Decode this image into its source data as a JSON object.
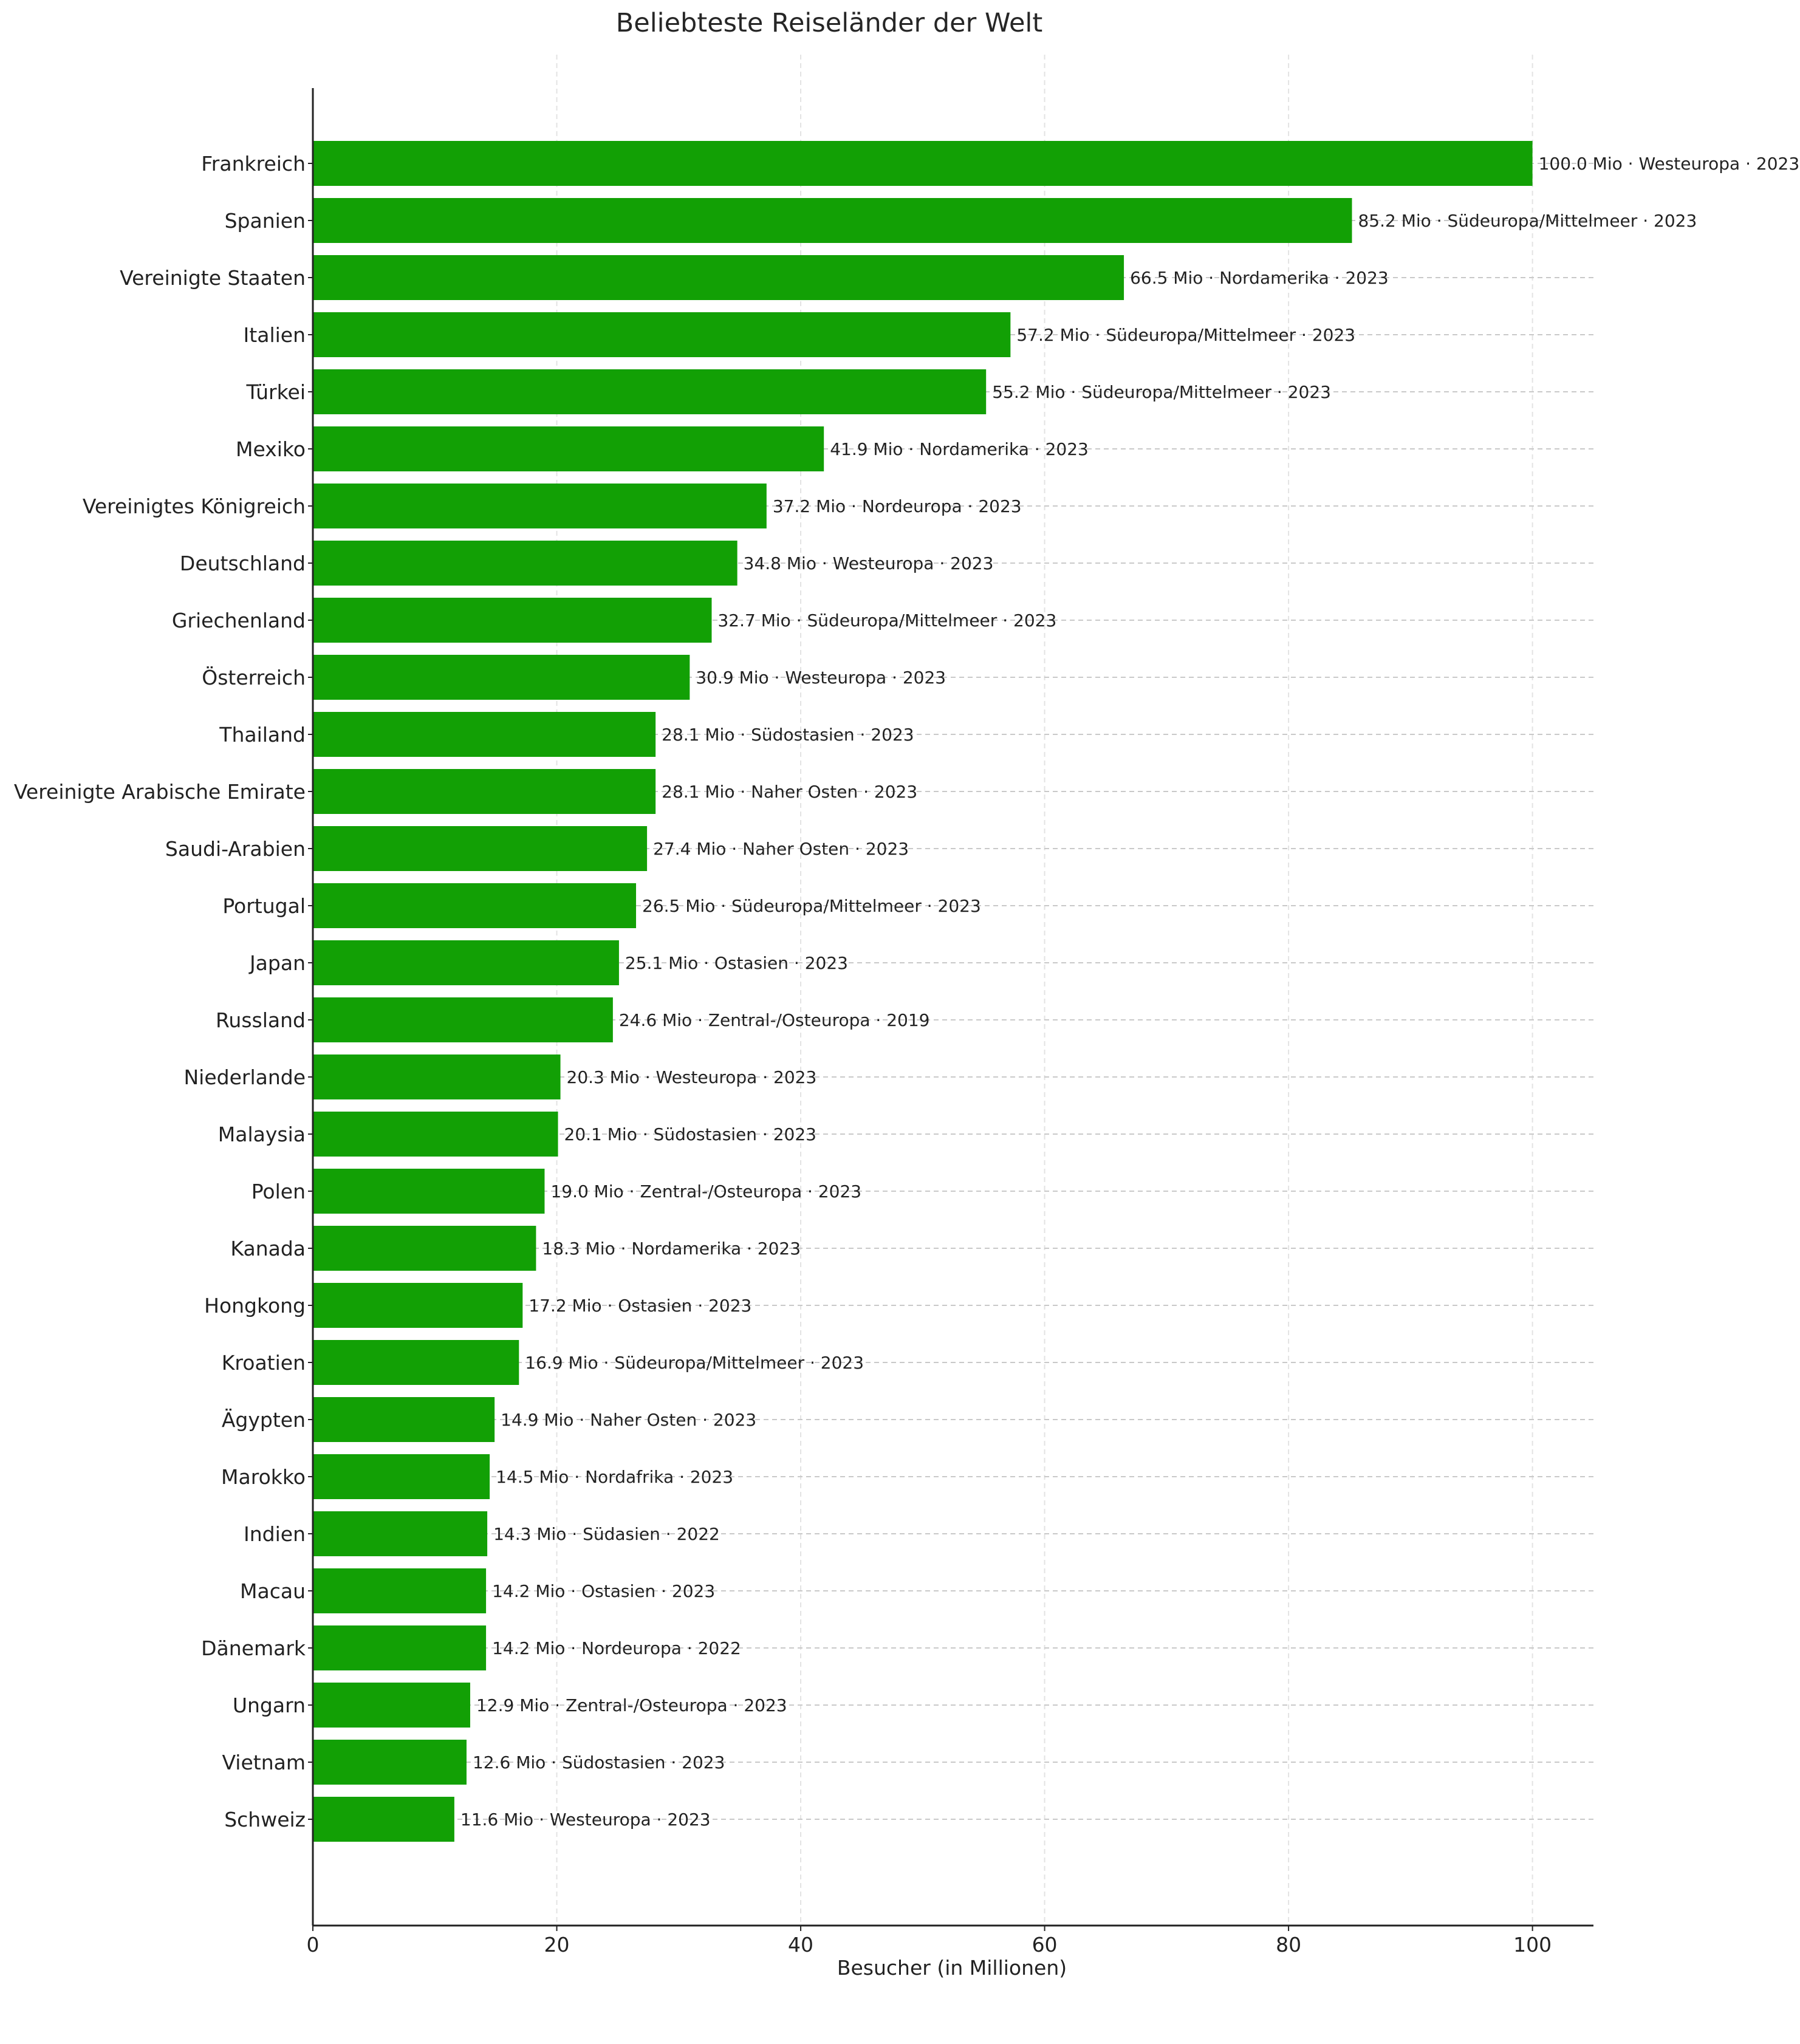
{
  "chart_data": {
    "type": "bar",
    "orientation": "horizontal",
    "title": "Beliebteste Reiseländer der Welt",
    "xlabel": "Besucher (in Millionen)",
    "ylabel": "",
    "xlim": [
      0,
      105
    ],
    "xticks": [
      "0",
      "20",
      "40",
      "60",
      "80",
      "100"
    ],
    "grid": true,
    "bar_color": "#12a005",
    "categories": [
      "Frankreich",
      "Spanien",
      "Vereinigte Staaten",
      "Italien",
      "Türkei",
      "Mexiko",
      "Vereinigtes Königreich",
      "Deutschland",
      "Griechenland",
      "Österreich",
      "Thailand",
      "Vereinigte Arabische Emirate",
      "Saudi-Arabien",
      "Portugal",
      "Japan",
      "Russland",
      "Niederlande",
      "Malaysia",
      "Polen",
      "Kanada",
      "Hongkong",
      "Kroatien",
      "Ägypten",
      "Marokko",
      "Indien",
      "Macau",
      "Dänemark",
      "Ungarn",
      "Vietnam",
      "Schweiz"
    ],
    "values": [
      100.0,
      85.2,
      66.5,
      57.2,
      55.2,
      41.9,
      37.2,
      34.8,
      32.7,
      30.9,
      28.1,
      28.1,
      27.4,
      26.5,
      25.1,
      24.6,
      20.3,
      20.1,
      19.0,
      18.3,
      17.2,
      16.9,
      14.9,
      14.5,
      14.3,
      14.2,
      14.2,
      12.9,
      12.6,
      11.6
    ],
    "data_labels": [
      "100.0 Mio · Westeuropa · 2023",
      "85.2 Mio · Südeuropa/Mittelmeer · 2023",
      "66.5 Mio · Nordamerika · 2023",
      "57.2 Mio · Südeuropa/Mittelmeer · 2023",
      "55.2 Mio · Südeuropa/Mittelmeer · 2023",
      "41.9 Mio · Nordamerika · 2023",
      "37.2 Mio · Nordeuropa · 2023",
      "34.8 Mio · Westeuropa · 2023",
      "32.7 Mio · Südeuropa/Mittelmeer · 2023",
      "30.9 Mio · Westeuropa · 2023",
      "28.1 Mio · Südostasien · 2023",
      "28.1 Mio · Naher Osten · 2023",
      "27.4 Mio · Naher Osten · 2023",
      "26.5 Mio · Südeuropa/Mittelmeer · 2023",
      "25.1 Mio · Ostasien · 2023",
      "24.6 Mio · Zentral-/Osteuropa · 2019",
      "20.3 Mio · Westeuropa · 2023",
      "20.1 Mio · Südostasien · 2023",
      "19.0 Mio · Zentral-/Osteuropa · 2023",
      "18.3 Mio · Nordamerika · 2023",
      "17.2 Mio · Ostasien · 2023",
      "16.9 Mio · Südeuropa/Mittelmeer · 2023",
      "14.9 Mio · Naher Osten · 2023",
      "14.5 Mio · Nordafrika · 2023",
      "14.3 Mio · Südasien · 2022",
      "14.2 Mio · Ostasien · 2023",
      "14.2 Mio · Nordeuropa · 2022",
      "12.9 Mio · Zentral-/Osteuropa · 2023",
      "12.6 Mio · Südostasien · 2023",
      "11.6 Mio · Westeuropa · 2023"
    ]
  }
}
